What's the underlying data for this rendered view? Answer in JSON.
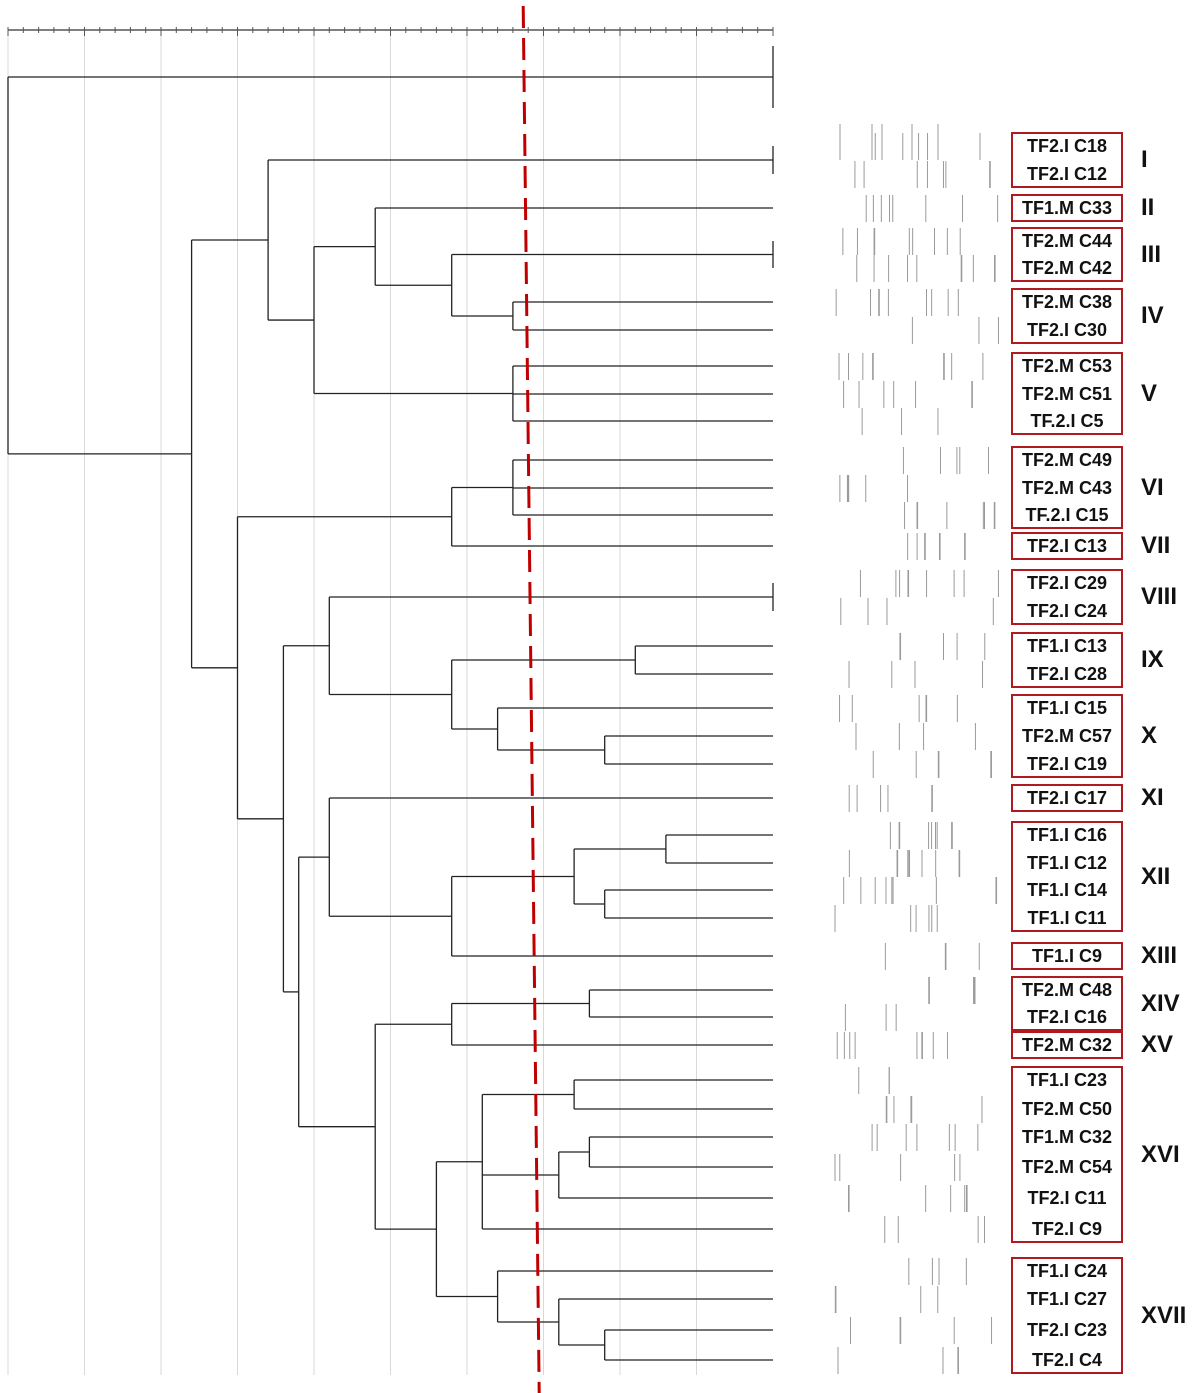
{
  "diagram_type": "UPGMA dendrogram with fingerprint band patterns",
  "colors": {
    "tree_lines": "#222222",
    "gridlines": "#d9d9d9",
    "cutoff_line": "#c00000",
    "cluster_box_border": "#b0191e",
    "band_lines": "#9a9a9a"
  },
  "cutoff_similarity": 84,
  "leaves": [
    {
      "id": "L1",
      "label": ""
    },
    {
      "id": "L2",
      "label": ""
    },
    {
      "id": "L3",
      "label": "TF2.I C18"
    },
    {
      "id": "L4",
      "label": "TF2.I C12"
    },
    {
      "id": "L5",
      "label": "TF1.M C33"
    },
    {
      "id": "L6",
      "label": "TF2.M C44"
    },
    {
      "id": "L7",
      "label": "TF2.M C42"
    },
    {
      "id": "L8",
      "label": "TF2.M C38"
    },
    {
      "id": "L9",
      "label": "TF2.I C30"
    },
    {
      "id": "L10",
      "label": "TF2.M C53"
    },
    {
      "id": "L11",
      "label": "TF2.M C51"
    },
    {
      "id": "L12",
      "label": "TF.2.I C5"
    },
    {
      "id": "L13",
      "label": "TF2.M C49"
    },
    {
      "id": "L14",
      "label": "TF2.M C43"
    },
    {
      "id": "L15",
      "label": "TF.2.I C15"
    },
    {
      "id": "L16",
      "label": "TF2.I C13"
    },
    {
      "id": "L17",
      "label": "TF2.I C29"
    },
    {
      "id": "L18",
      "label": "TF2.I C24"
    },
    {
      "id": "L19",
      "label": "TF1.I C13"
    },
    {
      "id": "L20",
      "label": "TF2.I C28"
    },
    {
      "id": "L21",
      "label": "TF1.I C15"
    },
    {
      "id": "L22",
      "label": "TF2.M C57"
    },
    {
      "id": "L23",
      "label": "TF2.I C19"
    },
    {
      "id": "L24",
      "label": "TF2.I C17"
    },
    {
      "id": "L25",
      "label": "TF1.I C16"
    },
    {
      "id": "L26",
      "label": "TF1.I C12"
    },
    {
      "id": "L27",
      "label": "TF1.I C14"
    },
    {
      "id": "L28",
      "label": "TF1.I C11"
    },
    {
      "id": "L29",
      "label": "TF1.I C9"
    },
    {
      "id": "L30",
      "label": "TF2.M C48"
    },
    {
      "id": "L31",
      "label": "TF2.I C16"
    },
    {
      "id": "L32",
      "label": "TF2.M C32"
    },
    {
      "id": "L33",
      "label": "TF1.I C23"
    },
    {
      "id": "L34",
      "label": "TF2.M C50"
    },
    {
      "id": "L35",
      "label": "TF1.M C32"
    },
    {
      "id": "L36",
      "label": "TF2.M C54"
    },
    {
      "id": "L37",
      "label": "TF2.I C11"
    },
    {
      "id": "L38",
      "label": "TF2.I C9"
    },
    {
      "id": "L39",
      "label": "TF1.I C24"
    },
    {
      "id": "L40",
      "label": "TF1.I C27"
    },
    {
      "id": "L41",
      "label": "TF2.I C23"
    },
    {
      "id": "L42",
      "label": "TF2.I C4"
    }
  ],
  "clusters": [
    {
      "numeral": "I",
      "leaves": [
        "L3",
        "L4"
      ]
    },
    {
      "numeral": "II",
      "leaves": [
        "L5"
      ]
    },
    {
      "numeral": "III",
      "leaves": [
        "L6",
        "L7"
      ]
    },
    {
      "numeral": "IV",
      "leaves": [
        "L8",
        "L9"
      ]
    },
    {
      "numeral": "V",
      "leaves": [
        "L10",
        "L11",
        "L12"
      ]
    },
    {
      "numeral": "VI",
      "leaves": [
        "L13",
        "L14",
        "L15"
      ]
    },
    {
      "numeral": "VII",
      "leaves": [
        "L16"
      ]
    },
    {
      "numeral": "VIII",
      "leaves": [
        "L17",
        "L18"
      ]
    },
    {
      "numeral": "IX",
      "leaves": [
        "L19",
        "L20"
      ]
    },
    {
      "numeral": "X",
      "leaves": [
        "L21",
        "L22",
        "L23"
      ]
    },
    {
      "numeral": "XI",
      "leaves": [
        "L24"
      ]
    },
    {
      "numeral": "XII",
      "leaves": [
        "L25",
        "L26",
        "L27",
        "L28"
      ]
    },
    {
      "numeral": "XIII",
      "leaves": [
        "L29"
      ]
    },
    {
      "numeral": "XIV",
      "leaves": [
        "L30",
        "L31"
      ]
    },
    {
      "numeral": "XV",
      "leaves": [
        "L32"
      ]
    },
    {
      "numeral": "XVI",
      "leaves": [
        "L33",
        "L34",
        "L35",
        "L36",
        "L37",
        "L38"
      ]
    },
    {
      "numeral": "XVII",
      "leaves": [
        "L39",
        "L40",
        "L41",
        "L42"
      ]
    }
  ],
  "tree": {
    "sim": 50,
    "children": [
      {
        "sim": 100,
        "children": [
          {
            "leaf": "L1"
          },
          {
            "leaf": "L2"
          }
        ]
      },
      {
        "sim": 62,
        "children": [
          {
            "sim": 67,
            "children": [
              {
                "sim": 100,
                "children": [
                  {
                    "leaf": "L3"
                  },
                  {
                    "leaf": "L4"
                  }
                ]
              },
              {
                "sim": 70,
                "children": [
                  {
                    "sim": 74,
                    "children": [
                      {
                        "leaf": "L5"
                      },
                      {
                        "sim": 79,
                        "children": [
                          {
                            "sim": 100,
                            "children": [
                              {
                                "leaf": "L6"
                              },
                              {
                                "leaf": "L7"
                              }
                            ]
                          },
                          {
                            "sim": 83,
                            "children": [
                              {
                                "leaf": "L8"
                              },
                              {
                                "leaf": "L9"
                              }
                            ]
                          }
                        ]
                      }
                    ]
                  },
                  {
                    "sim": 83,
                    "children": [
                      {
                        "leaf": "L10"
                      },
                      {
                        "leaf": "L11"
                      },
                      {
                        "leaf": "L12"
                      }
                    ]
                  }
                ]
              }
            ]
          },
          {
            "sim": 65,
            "children": [
              {
                "sim": 79,
                "children": [
                  {
                    "sim": 83,
                    "children": [
                      {
                        "leaf": "L13"
                      },
                      {
                        "leaf": "L14"
                      },
                      {
                        "leaf": "L15"
                      }
                    ]
                  },
                  {
                    "leaf": "L16"
                  }
                ]
              },
              {
                "sim": 68,
                "children": [
                  {
                    "sim": 71,
                    "children": [
                      {
                        "sim": 100,
                        "children": [
                          {
                            "leaf": "L17"
                          },
                          {
                            "leaf": "L18"
                          }
                        ]
                      },
                      {
                        "sim": 79,
                        "children": [
                          {
                            "sim": 91,
                            "children": [
                              {
                                "leaf": "L19"
                              },
                              {
                                "leaf": "L20"
                              }
                            ]
                          },
                          {
                            "sim": 82,
                            "children": [
                              {
                                "leaf": "L21"
                              },
                              {
                                "sim": 89,
                                "children": [
                                  {
                                    "leaf": "L22"
                                  },
                                  {
                                    "leaf": "L23"
                                  }
                                ]
                              }
                            ]
                          }
                        ]
                      }
                    ]
                  },
                  {
                    "sim": 69,
                    "children": [
                      {
                        "sim": 71,
                        "children": [
                          {
                            "leaf": "L24"
                          },
                          {
                            "sim": 79,
                            "children": [
                              {
                                "sim": 87,
                                "children": [
                                  {
                                    "sim": 93,
                                    "children": [
                                      {
                                        "leaf": "L25"
                                      },
                                      {
                                        "leaf": "L26"
                                      }
                                    ]
                                  },
                                  {
                                    "sim": 89,
                                    "children": [
                                      {
                                        "leaf": "L27"
                                      },
                                      {
                                        "leaf": "L28"
                                      }
                                    ]
                                  }
                                ]
                              },
                              {
                                "leaf": "L29"
                              }
                            ]
                          }
                        ]
                      },
                      {
                        "sim": 74,
                        "children": [
                          {
                            "sim": 79,
                            "children": [
                              {
                                "sim": 88,
                                "children": [
                                  {
                                    "leaf": "L30"
                                  },
                                  {
                                    "leaf": "L31"
                                  }
                                ]
                              },
                              {
                                "leaf": "L32"
                              }
                            ]
                          },
                          {
                            "sim": 78,
                            "children": [
                              {
                                "sim": 81,
                                "children": [
                                  {
                                    "sim": 87,
                                    "children": [
                                      {
                                        "leaf": "L33"
                                      },
                                      {
                                        "leaf": "L34"
                                      }
                                    ]
                                  },
                                  {
                                    "sim": 86,
                                    "children": [
                                      {
                                        "sim": 88,
                                        "children": [
                                          {
                                            "leaf": "L35"
                                          },
                                          {
                                            "leaf": "L36"
                                          }
                                        ]
                                      },
                                      {
                                        "leaf": "L37"
                                      }
                                    ]
                                  },
                                  {
                                    "leaf": "L38"
                                  }
                                ]
                              },
                              {
                                "sim": 82,
                                "children": [
                                  {
                                    "leaf": "L39"
                                  },
                                  {
                                    "sim": 86,
                                    "children": [
                                      {
                                        "leaf": "L40"
                                      },
                                      {
                                        "sim": 89,
                                        "children": [
                                          {
                                            "leaf": "L41"
                                          },
                                          {
                                            "leaf": "L42"
                                          }
                                        ]
                                      }
                                    ]
                                  }
                                ]
                              }
                            ]
                          }
                        ]
                      }
                    ]
                  }
                ]
              }
            ]
          }
        ]
      }
    ]
  }
}
